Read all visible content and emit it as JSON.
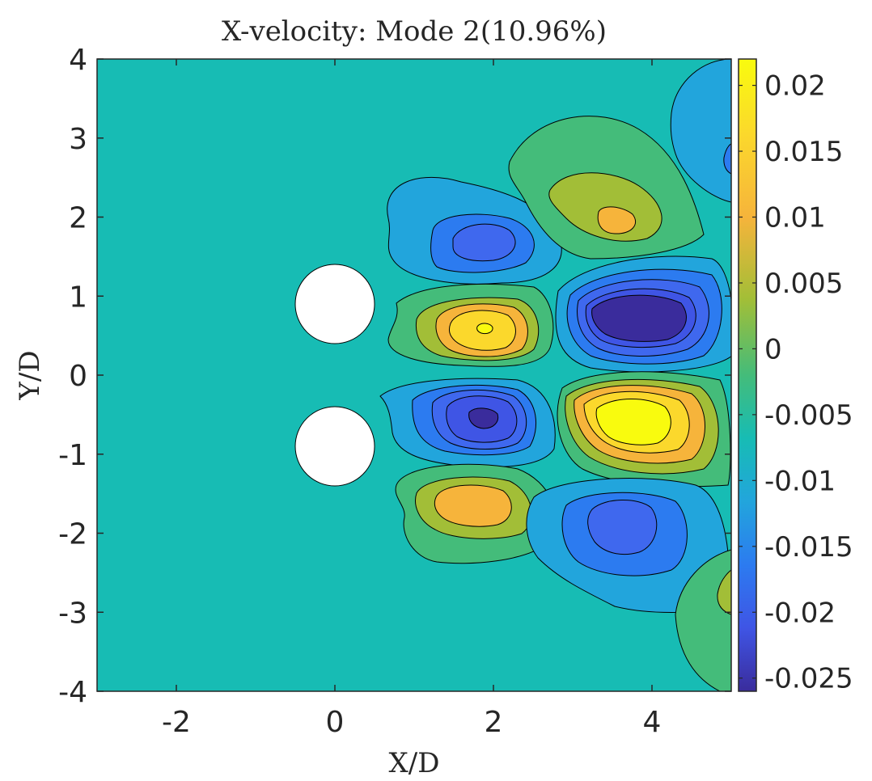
{
  "chart_data": {
    "type": "contour",
    "title": "X-velocity: Mode 2(10.96%)",
    "xlabel": "X/D",
    "ylabel": "Y/D",
    "xlim": [
      -3,
      5
    ],
    "ylim": [
      -4,
      4
    ],
    "x_ticks": [
      -2,
      0,
      2,
      4
    ],
    "y_ticks": [
      4,
      3,
      2,
      1,
      0,
      -1,
      -2,
      -3,
      -4
    ],
    "colorbar": {
      "limits": [
        -0.026,
        0.022
      ],
      "ticks": [
        0.02,
        0.015,
        0.01,
        0.005,
        0,
        -0.005,
        -0.01,
        -0.015,
        -0.02,
        -0.025
      ],
      "tick_labels": [
        "0.02",
        "0.015",
        "0.01",
        "0.005",
        "0",
        "-0.005",
        "-0.01",
        "-0.015",
        "-0.02",
        "-0.025"
      ]
    },
    "cylinders": [
      {
        "cx": 0,
        "cy": 0.9,
        "r": 0.5
      },
      {
        "cx": 0,
        "cy": -0.9,
        "r": 0.5
      }
    ],
    "structures": [
      {
        "name": "upper-outer-negative",
        "cx": 1.9,
        "cy": 1.7,
        "peak": -0.016
      },
      {
        "name": "upper-positive",
        "cx": 3.6,
        "cy": 2.0,
        "peak": 0.013
      },
      {
        "name": "upper-inner-positive",
        "cx": 1.9,
        "cy": 0.55,
        "peak": 0.02
      },
      {
        "name": "center-negative",
        "cx": 3.9,
        "cy": 0.75,
        "peak": -0.025
      },
      {
        "name": "lower-inner-negative",
        "cx": 1.9,
        "cy": -0.55,
        "peak": -0.024
      },
      {
        "name": "center-positive",
        "cx": 3.8,
        "cy": -0.65,
        "peak": 0.022
      },
      {
        "name": "lower-outer-positive",
        "cx": 1.9,
        "cy": -1.7,
        "peak": 0.014
      },
      {
        "name": "lower-negative",
        "cx": 3.6,
        "cy": -1.9,
        "peak": -0.017
      },
      {
        "name": "upper-far-negative",
        "cx": 5.0,
        "cy": 3.2,
        "peak": -0.012
      },
      {
        "name": "lower-far-positive",
        "cx": 5.0,
        "cy": -2.6,
        "peak": 0.009
      }
    ]
  }
}
